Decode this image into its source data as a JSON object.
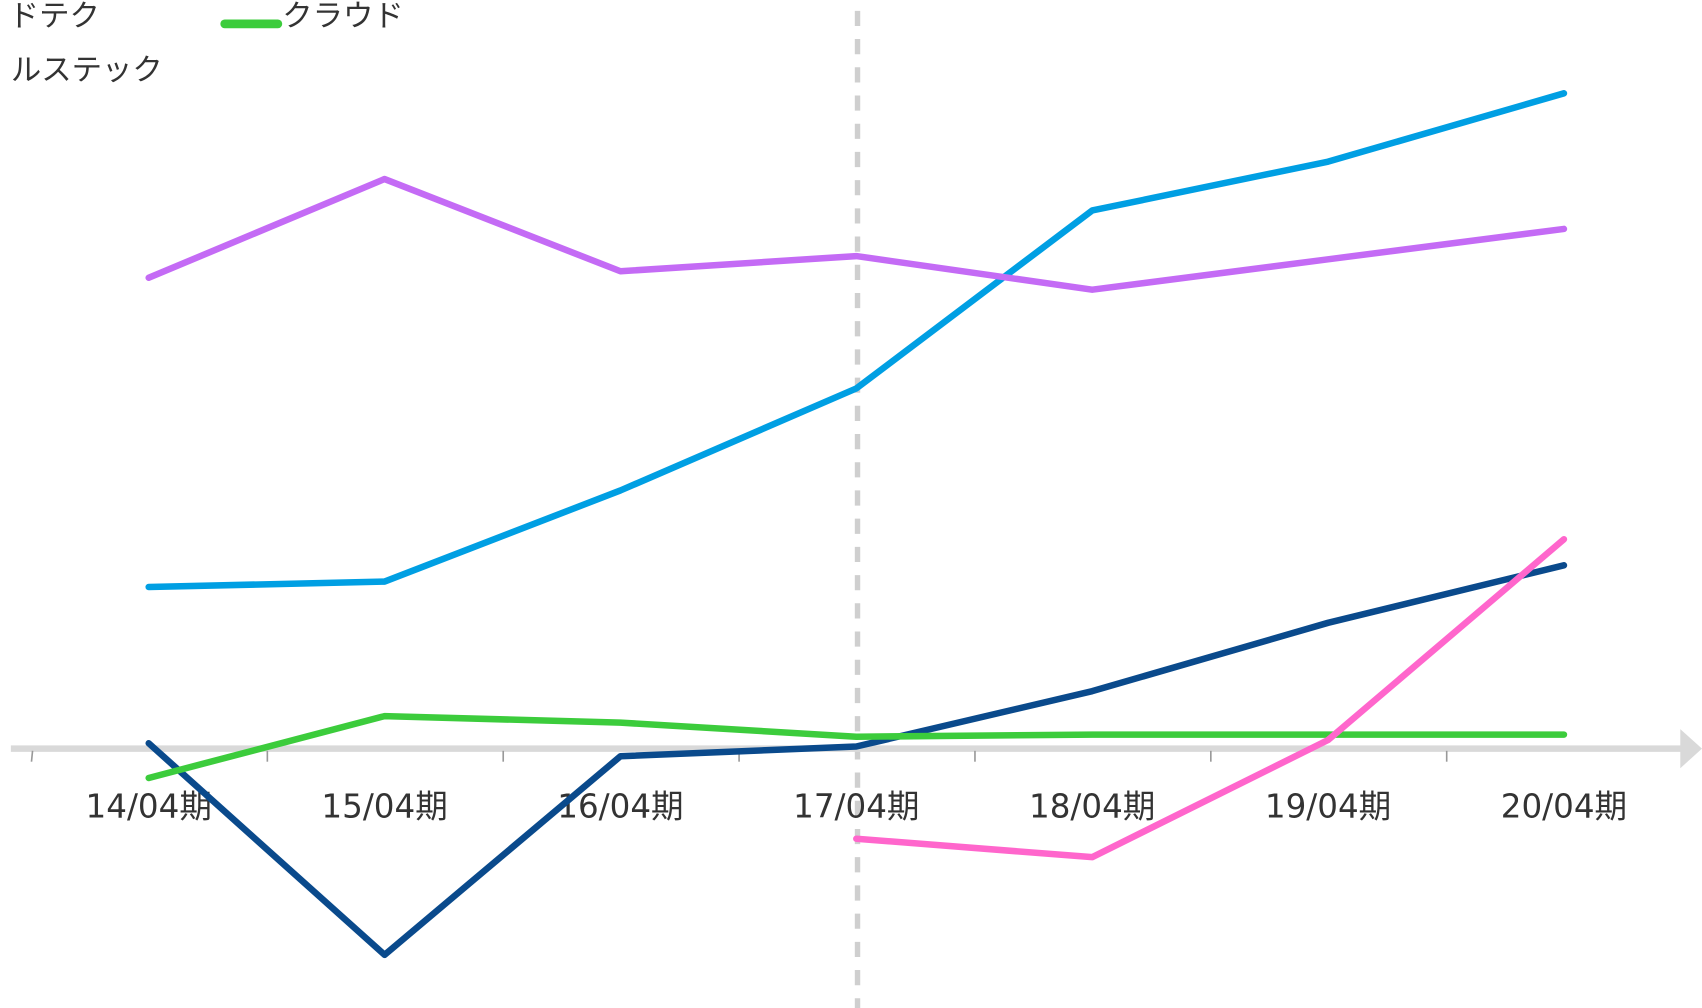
{
  "chart_data": {
    "type": "line",
    "categories": [
      "14/04期",
      "15/04期",
      "16/04期",
      "17/04期",
      "18/04期",
      "19/04期",
      "20/04期"
    ],
    "legend": [
      {
        "name": "ドテク"
      },
      {
        "name": "ルステック"
      },
      {
        "name": "クラウド",
        "color": "#3ccc3c"
      }
    ],
    "series": [
      {
        "color": "#009fe3",
        "values": [
          14.9,
          15.4,
          23.8,
          33.2,
          49.6,
          54.1,
          60.4
        ]
      },
      {
        "color": "#c46bf5",
        "values": [
          43.4,
          52.5,
          44.0,
          45.4,
          42.3,
          45.1,
          47.9
        ]
      },
      {
        "color": "#0a4a8c",
        "values": [
          0.5,
          -19,
          -0.7,
          0.2,
          5.3,
          11.6,
          16.9
        ]
      },
      {
        "color": "#3ccc3c",
        "values": [
          -2.7,
          3.0,
          2.4,
          1.1,
          1.3,
          1.3,
          1.3
        ]
      },
      {
        "color": "#ff66cc",
        "values": [
          null,
          null,
          null,
          -8.3,
          -10,
          0.8,
          19.3
        ]
      }
    ],
    "ylim": [
      -24,
      69
    ]
  }
}
